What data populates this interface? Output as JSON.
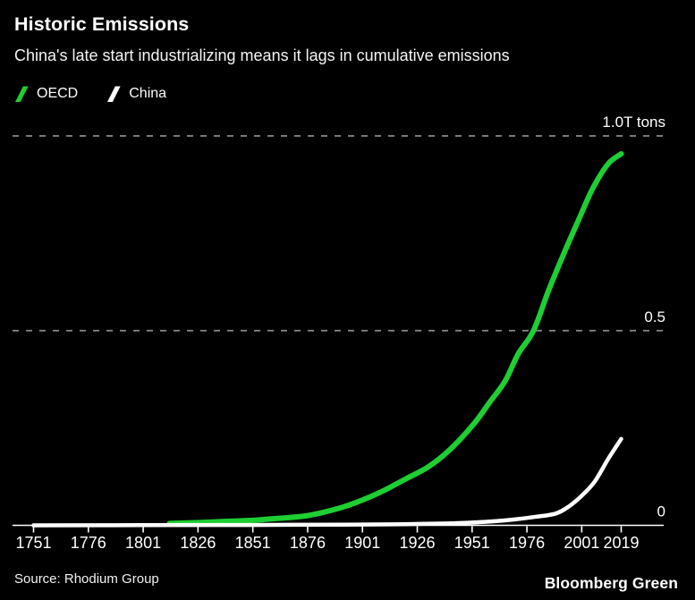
{
  "header": {
    "title": "Historic Emissions",
    "subtitle": "China's late start industrializing means it lags in cumulative emissions"
  },
  "legend": {
    "items": [
      {
        "label": "OECD",
        "color": "#1dcf32",
        "icon": "oecd-slash-icon"
      },
      {
        "label": "China",
        "color": "#ffffff",
        "icon": "china-slash-icon"
      }
    ]
  },
  "footer": {
    "source": "Source: Rhodium Group",
    "brand": "Bloomberg Green"
  },
  "colors": {
    "background": "#000000",
    "text": "#ffffff",
    "gridline": "#8a8a8a",
    "axis": "#ffffff",
    "accent_green": "#1dcf32"
  },
  "chart_data": {
    "type": "line",
    "title": "Historic Emissions",
    "subtitle": "China's late start industrializing means it lags in cumulative emissions",
    "legend_position": "top-left",
    "grid": "dashed horizontal gridlines at 0.5 and 1.0",
    "x_axis": {
      "range": [
        1751,
        2019
      ],
      "tick_values": [
        1751,
        1776,
        1801,
        1826,
        1851,
        1876,
        1901,
        1926,
        1951,
        1976,
        2001,
        2019
      ],
      "tick_labels": [
        "1751",
        "1776",
        "1801",
        "1826",
        "1851",
        "1876",
        "1901",
        "1926",
        "1951",
        "1976",
        "2001",
        "2019"
      ]
    },
    "y_axis": {
      "range": [
        0,
        1.0
      ],
      "values": [
        1.0,
        0.5,
        0
      ],
      "labels": [
        "1.0T tons",
        "0.5",
        "0"
      ],
      "gridlines": [
        1.0,
        0.5
      ],
      "label_side": "right"
    },
    "series": [
      {
        "name": "OECD",
        "color": "#1dcf32",
        "points": [
          [
            1813,
            0.005
          ],
          [
            1825,
            0.007
          ],
          [
            1838,
            0.01
          ],
          [
            1851,
            0.013
          ],
          [
            1858,
            0.016
          ],
          [
            1876,
            0.025
          ],
          [
            1891,
            0.045
          ],
          [
            1901,
            0.065
          ],
          [
            1911,
            0.09
          ],
          [
            1921,
            0.12
          ],
          [
            1931,
            0.15
          ],
          [
            1941,
            0.195
          ],
          [
            1952,
            0.262
          ],
          [
            1959,
            0.316
          ],
          [
            1966,
            0.37
          ],
          [
            1972,
            0.44
          ],
          [
            1979,
            0.5
          ],
          [
            1986,
            0.605
          ],
          [
            1993,
            0.7
          ],
          [
            2000,
            0.79
          ],
          [
            2006,
            0.865
          ],
          [
            2013,
            0.928
          ],
          [
            2019,
            0.954
          ]
        ]
      },
      {
        "name": "China",
        "color": "#ffffff",
        "points": [
          [
            1751,
            0.0
          ],
          [
            1800,
            0.0005
          ],
          [
            1850,
            0.001
          ],
          [
            1900,
            0.002
          ],
          [
            1920,
            0.003
          ],
          [
            1940,
            0.005
          ],
          [
            1950,
            0.007
          ],
          [
            1960,
            0.01
          ],
          [
            1970,
            0.015
          ],
          [
            1980,
            0.022
          ],
          [
            1989,
            0.03
          ],
          [
            1995,
            0.048
          ],
          [
            2001,
            0.076
          ],
          [
            2007,
            0.113
          ],
          [
            2013,
            0.17
          ],
          [
            2019,
            0.222
          ]
        ]
      }
    ]
  }
}
